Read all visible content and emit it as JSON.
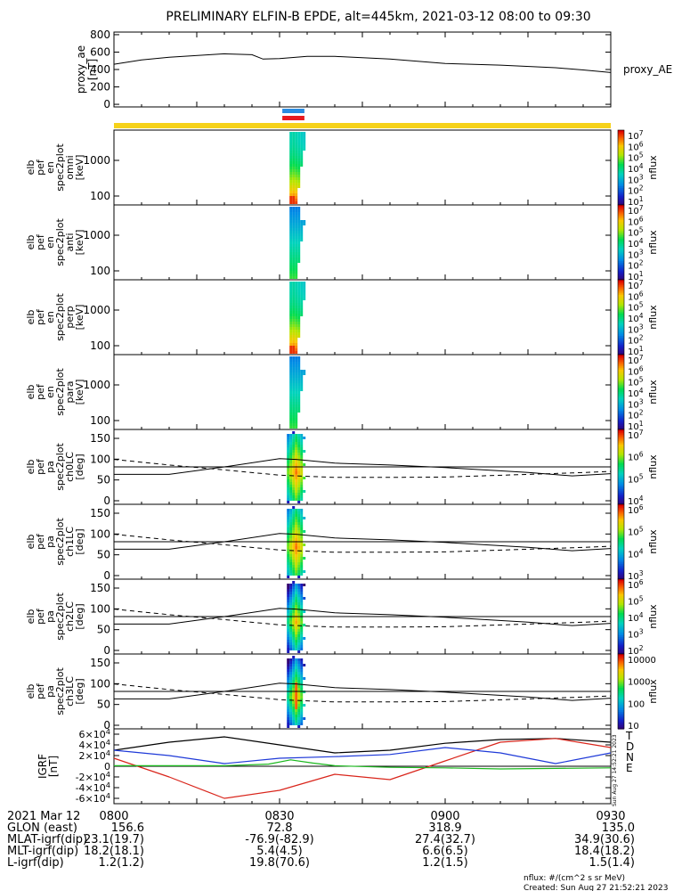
{
  "title": "PRELIMINARY ELFIN-B EPDE, alt=445km, 2021-03-12 08:00 to 09:30",
  "colors": {
    "orbit_bar": "#f6d21a",
    "sci_blue": "#2a8be0",
    "sci_red": "#e8191f",
    "grf_black": "#000000",
    "grf_red": "#d9251b",
    "grf_blue": "#1f3ad8",
    "grf_green": "#19b81c"
  },
  "time_axis": {
    "ticks": [
      "0800",
      "0830",
      "0900",
      "0930"
    ],
    "date_label": "2021 Mar 12",
    "range_minutes": [
      0,
      90
    ]
  },
  "ephemeris": [
    {
      "label": "GLON (east)",
      "values": [
        "156.6",
        "72.8",
        "318.9",
        "135.0"
      ]
    },
    {
      "label": "MLAT-igrf(dip)",
      "values": [
        "23.1(19.7)",
        "-76.9(-82.9)",
        "27.4(32.7)",
        "34.9(30.6)"
      ]
    },
    {
      "label": "MLT-igrf(dip)",
      "values": [
        "18.2(18.1)",
        "5.4(4.5)",
        "6.6(6.5)",
        "18.4(18.2)"
      ]
    },
    {
      "label": "L-igrf(dip)",
      "values": [
        "1.2(1.2)",
        "19.8(70.6)",
        "1.2(1.5)",
        "1.5(1.4)"
      ]
    }
  ],
  "footer": {
    "units": "nflux: #/(cm^2 s sr MeV)",
    "created": "Created: Sun Aug 27 21:52:21 2023",
    "vertical_stamp": "Sun Aug 27 14:52:21 2023"
  },
  "chart_data": [
    {
      "type": "line",
      "panel": "proxy_ae",
      "ylabel_lines": [
        "proxy_ae",
        "[nT]"
      ],
      "right_label": "proxy_AE",
      "ylim": [
        -30,
        830
      ],
      "yticks": [
        "800",
        "600",
        "400",
        "200",
        "0"
      ],
      "ytick_values": [
        800,
        600,
        400,
        200,
        0
      ],
      "x_minutes": [
        0,
        5,
        10,
        20,
        25,
        27,
        30,
        35,
        40,
        50,
        60,
        70,
        80,
        85,
        90
      ],
      "values": [
        460,
        510,
        540,
        580,
        570,
        520,
        525,
        550,
        550,
        520,
        470,
        450,
        420,
        395,
        365
      ]
    },
    {
      "type": "heatmap",
      "panel": "omni",
      "ylabel_lines": [
        "elb",
        "pef",
        "en",
        "spec2plot",
        "omni",
        "[keV]"
      ],
      "yticks": [
        "1000",
        "100"
      ],
      "colorbar": {
        "label": "nflux",
        "ticks": [
          "10^7",
          "10^6",
          "10^5",
          "10^4",
          "10^3",
          "10^2",
          "10^1"
        ]
      },
      "active_minutes": [
        31,
        34
      ]
    },
    {
      "type": "heatmap",
      "panel": "anti",
      "ylabel_lines": [
        "elb",
        "pef",
        "en",
        "spec2plot",
        "anti",
        "[keV]"
      ],
      "yticks": [
        "1000",
        "100"
      ],
      "colorbar": {
        "label": "nflux",
        "ticks": [
          "10^7",
          "10^6",
          "10^5",
          "10^4",
          "10^3",
          "10^2",
          "10^1"
        ]
      },
      "active_minutes": [
        31,
        34
      ]
    },
    {
      "type": "heatmap",
      "panel": "perp",
      "ylabel_lines": [
        "elb",
        "pef",
        "en",
        "spec2plot",
        "perp",
        "[keV]"
      ],
      "yticks": [
        "1000",
        "100"
      ],
      "colorbar": {
        "label": "nflux",
        "ticks": [
          "10^7",
          "10^6",
          "10^5",
          "10^4",
          "10^3",
          "10^2",
          "10^1"
        ]
      },
      "active_minutes": [
        31,
        34
      ]
    },
    {
      "type": "heatmap",
      "panel": "para",
      "ylabel_lines": [
        "elb",
        "pef",
        "en",
        "spec2plot",
        "para",
        "[keV]"
      ],
      "yticks": [
        "1000",
        "100"
      ],
      "colorbar": {
        "label": "nflux",
        "ticks": [
          "10^7",
          "10^6",
          "10^5",
          "10^4",
          "10^3",
          "10^2",
          "10^1"
        ]
      },
      "active_minutes": [
        31,
        34
      ]
    },
    {
      "type": "heatmap",
      "panel": "ch0LC",
      "ylabel_lines": [
        "elb",
        "pef",
        "pa",
        "spec2plot",
        "ch0LC",
        "[deg]"
      ],
      "yticks": [
        "150",
        "100",
        "50",
        "0"
      ],
      "colorbar": {
        "label": "nflux",
        "ticks": [
          "10^7",
          "10^6",
          "10^5",
          "10^4"
        ]
      },
      "active_minutes": [
        31,
        34
      ]
    },
    {
      "type": "heatmap",
      "panel": "ch1LC",
      "ylabel_lines": [
        "elb",
        "pef",
        "pa",
        "spec2plot",
        "ch1LC",
        "[deg]"
      ],
      "yticks": [
        "150",
        "100",
        "50",
        "0"
      ],
      "colorbar": {
        "label": "nflux",
        "ticks": [
          "10^6",
          "10^5",
          "10^4",
          "10^3"
        ]
      },
      "active_minutes": [
        31,
        34
      ]
    },
    {
      "type": "heatmap",
      "panel": "ch2LC",
      "ylabel_lines": [
        "elb",
        "pef",
        "pa",
        "spec2plot",
        "ch2LC",
        "[deg]"
      ],
      "yticks": [
        "150",
        "100",
        "50",
        "0"
      ],
      "colorbar": {
        "label": "nflux",
        "ticks": [
          "10^6",
          "10^5",
          "10^4",
          "10^3",
          "10^2"
        ]
      },
      "active_minutes": [
        31,
        34
      ]
    },
    {
      "type": "heatmap",
      "panel": "ch3LC",
      "ylabel_lines": [
        "elb",
        "pef",
        "pa",
        "spec2plot",
        "ch3LC",
        "[deg]"
      ],
      "yticks": [
        "150",
        "100",
        "50",
        "0"
      ],
      "colorbar": {
        "label": "nflux",
        "ticks": [
          "10000",
          "1000",
          "100",
          "10"
        ]
      },
      "active_minutes": [
        31,
        34
      ]
    },
    {
      "type": "line",
      "panel": "igrf",
      "ylabel_lines": [
        "IGRF",
        "[nT]"
      ],
      "ylim": [
        -70000,
        70000
      ],
      "yticks": [
        "6×10^4",
        "4×10^4",
        "2×10^4",
        "0",
        "-2×10^4",
        "-4×10^4",
        "-6×10^4"
      ],
      "ytick_values": [
        60000,
        40000,
        20000,
        0,
        -20000,
        -40000,
        -60000
      ],
      "series": [
        {
          "name": "T",
          "x_minutes": [
            0,
            10,
            20,
            30,
            40,
            50,
            60,
            70,
            80,
            90
          ],
          "values": [
            30000,
            45000,
            55000,
            40000,
            25000,
            30000,
            43000,
            50000,
            52000,
            45000
          ]
        },
        {
          "name": "D",
          "x_minutes": [
            0,
            10,
            20,
            30,
            40,
            50,
            60,
            70,
            80,
            90
          ],
          "values": [
            15000,
            -20000,
            -60000,
            -45000,
            -15000,
            -25000,
            10000,
            45000,
            52000,
            35000
          ]
        },
        {
          "name": "N",
          "x_minutes": [
            0,
            10,
            20,
            30,
            40,
            50,
            60,
            70,
            80,
            90
          ],
          "values": [
            30000,
            20000,
            5000,
            15000,
            18000,
            22000,
            35000,
            25000,
            5000,
            25000
          ]
        },
        {
          "name": "E",
          "x_minutes": [
            0,
            20,
            28,
            32,
            36,
            40,
            50,
            60,
            70,
            80,
            90
          ],
          "values": [
            1000,
            1000,
            4000,
            12000,
            6000,
            1000,
            -2000,
            -3000,
            -5000,
            -4000,
            -3000
          ]
        }
      ]
    }
  ]
}
